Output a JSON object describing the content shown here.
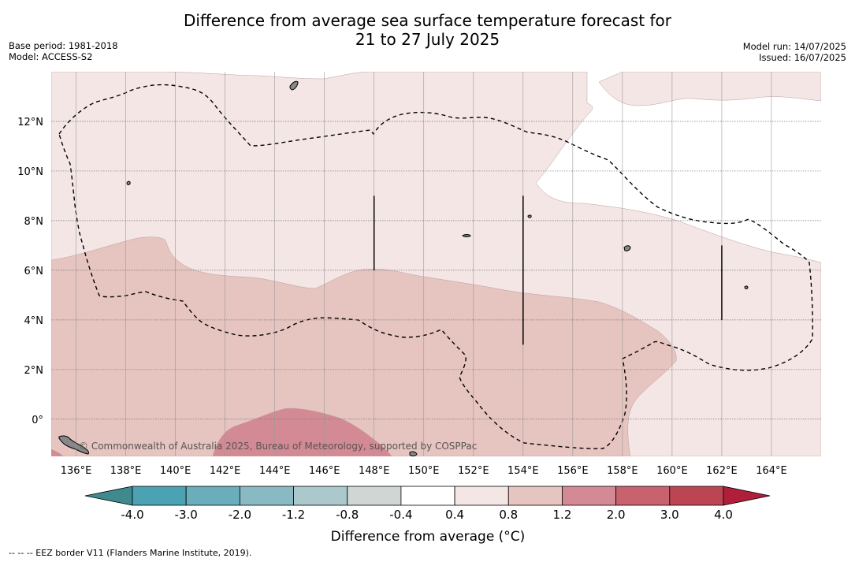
{
  "title": {
    "line1": "Difference from average sea surface temperature forecast for",
    "line2": "21 to 27 July 2025"
  },
  "meta_left": {
    "base_period": "Base period: 1981-2018",
    "model": "Model: ACCESS-S2"
  },
  "meta_right": {
    "model_run": "Model run: 14/07/2025",
    "issued": "Issued: 16/07/2025"
  },
  "map": {
    "x_ticks": [
      "136°E",
      "138°E",
      "140°E",
      "142°E",
      "144°E",
      "146°E",
      "148°E",
      "150°E",
      "152°E",
      "154°E",
      "156°E",
      "158°E",
      "160°E",
      "162°E",
      "164°E"
    ],
    "y_ticks": [
      "12°N",
      "10°N",
      "8°N",
      "6°N",
      "4°N",
      "2°N",
      "0°"
    ],
    "lon_range": [
      135,
      166
    ],
    "lat_range": [
      -1.5,
      14
    ],
    "credit": "© Commonwealth of Australia 2025, Bureau of Meteorology, supported by COSPPac",
    "colors": {
      "land": "#888888",
      "band_0_4_0_8": "#f4e6e4",
      "band_0_8_1_2": "#e6c4bf",
      "band_1_2_2_0": "#d48a94",
      "eez_line": "#000000"
    }
  },
  "colorbar": {
    "labels": [
      "-4.0",
      "-3.0",
      "-2.0",
      "-1.2",
      "-0.8",
      "-0.4",
      "0.4",
      "0.8",
      "1.2",
      "2.0",
      "3.0",
      "4.0"
    ],
    "colors": [
      "#4aa2b3",
      "#6aaebc",
      "#89bac4",
      "#abc9cc",
      "#d0d6d4",
      "#ffffff",
      "#f4e6e4",
      "#e6c4bf",
      "#d48a94",
      "#c8626f",
      "#bc4554"
    ],
    "under_color": "#3f8a8f",
    "over_color": "#b01e3a",
    "label": "Difference from average (°C)"
  },
  "footer": "-- -- -- EEZ border V11 (Flanders Marine Institute, 2019)."
}
